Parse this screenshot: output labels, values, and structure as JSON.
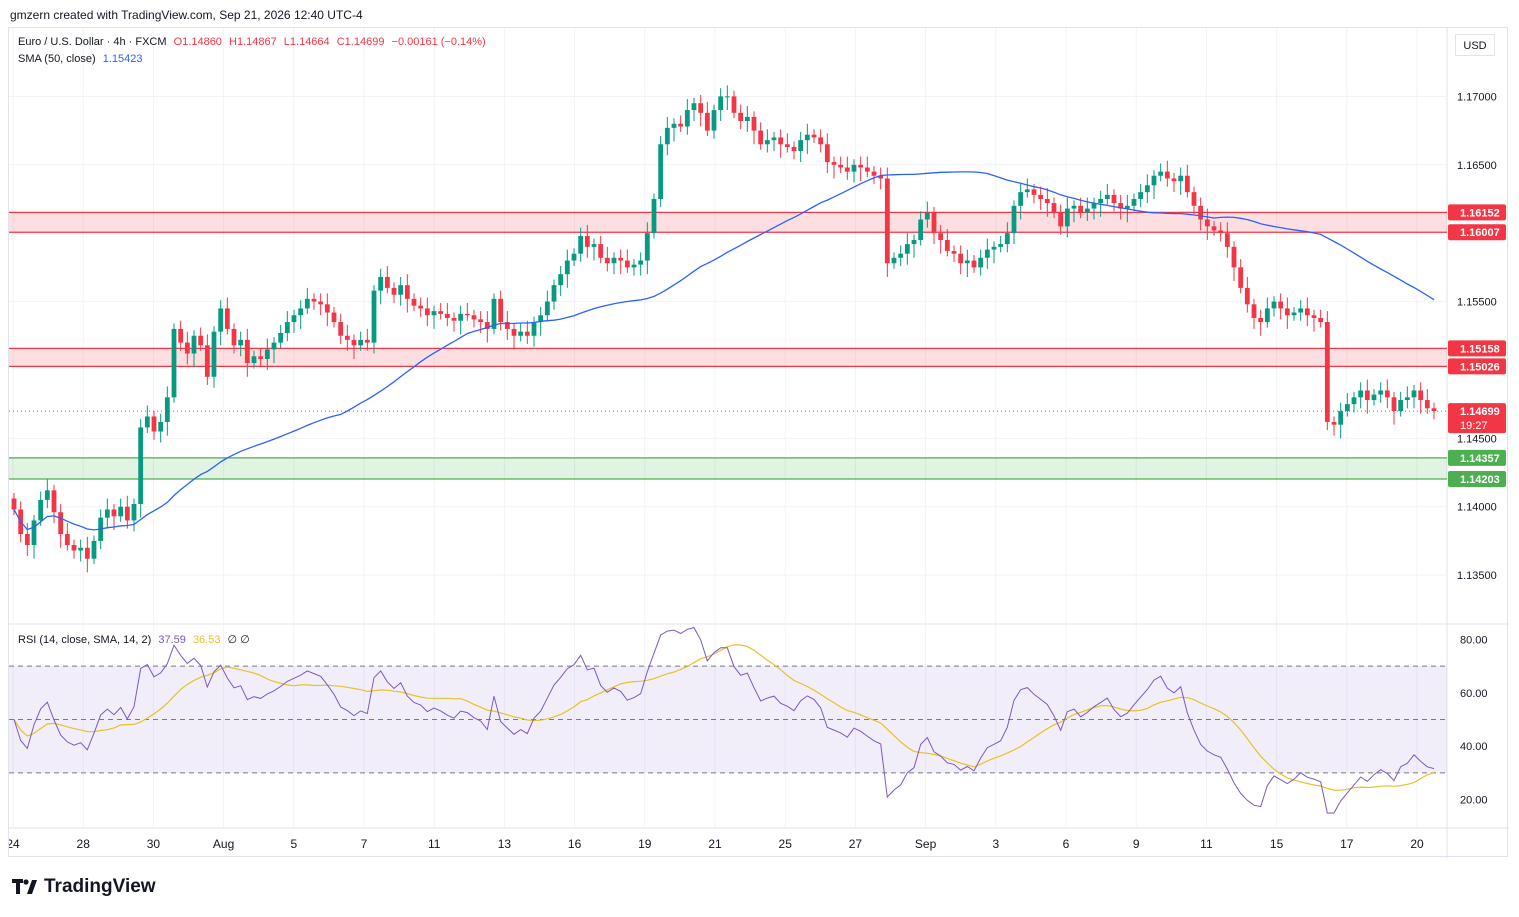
{
  "header": {
    "attribution": "gmzern created with TradingView.com, Sep 21, 2026 12:40 UTC-4"
  },
  "legend": {
    "symbol": "Euro / U.S. Dollar · 4h · FXCM",
    "ohlc_o": "O1.14860",
    "ohlc_h": "H1.14867",
    "ohlc_l": "L1.14664",
    "ohlc_c": "C1.14699",
    "change": "−0.00161 (−0.14%)",
    "sma_label": "SMA (50, close)",
    "sma_value": "1.15423",
    "rsi_label": "RSI (14, close, SMA, 14, 2)",
    "rsi_value": "37.59",
    "rsi_ma_value": "36.53",
    "rsi_extra": "∅ ∅"
  },
  "currency": "USD",
  "footer": {
    "brand": "TradingView"
  },
  "colors": {
    "up": "#089981",
    "down": "#f23645",
    "sma": "#2962ff",
    "rsi": "#7e57c2",
    "rsi_ma": "#e6c229",
    "supply_zone": "#f23645",
    "demand_zone": "#4caf50"
  },
  "chart_data": {
    "type": "candlestick",
    "price_axis": {
      "ticks": [
        "1.17000",
        "1.16500",
        "1.15500",
        "1.14500",
        "1.14000",
        "1.13500"
      ],
      "ylim": [
        1.1315,
        1.175
      ]
    },
    "price_labels": {
      "zone_upper_top": "1.16152",
      "zone_upper_bottom": "1.16007",
      "zone_mid_top": "1.15158",
      "zone_mid_bottom": "1.15026",
      "last_price": "1.14699",
      "countdown": "19:27",
      "zone_low_top": "1.14357",
      "zone_low_bottom": "1.14203"
    },
    "zones": [
      {
        "kind": "resistance",
        "top": 1.16152,
        "bottom": 1.16007
      },
      {
        "kind": "resistance",
        "top": 1.15158,
        "bottom": 1.15026
      },
      {
        "kind": "support",
        "top": 1.14357,
        "bottom": 1.14203
      }
    ],
    "last_price": 1.14699,
    "x_axis": {
      "labels": [
        "24",
        "28",
        "30",
        "Aug",
        "5",
        "7",
        "11",
        "13",
        "16",
        "19",
        "21",
        "25",
        "27",
        "Sep",
        "3",
        "6",
        "9",
        "11",
        "15",
        "17",
        "20"
      ]
    },
    "close_series": [
      1.1398,
      1.138,
      1.1372,
      1.139,
      1.1405,
      1.1412,
      1.1396,
      1.138,
      1.1372,
      1.1368,
      1.137,
      1.1362,
      1.1375,
      1.1392,
      1.1398,
      1.1393,
      1.14,
      1.139,
      1.1402,
      1.1458,
      1.1466,
      1.1455,
      1.1462,
      1.148,
      1.153,
      1.152,
      1.1512,
      1.1525,
      1.1518,
      1.1495,
      1.1528,
      1.1545,
      1.153,
      1.1518,
      1.1522,
      1.1505,
      1.151,
      1.1508,
      1.1515,
      1.152,
      1.1527,
      1.1535,
      1.154,
      1.1545,
      1.1552,
      1.155,
      1.1548,
      1.1542,
      1.1535,
      1.1525,
      1.1522,
      1.1518,
      1.1522,
      1.152,
      1.1558,
      1.1568,
      1.156,
      1.1555,
      1.1562,
      1.1552,
      1.1547,
      1.1545,
      1.154,
      1.1543,
      1.1541,
      1.1538,
      1.1536,
      1.1541,
      1.154,
      1.1537,
      1.1535,
      1.153,
      1.1552,
      1.1535,
      1.153,
      1.1525,
      1.1528,
      1.1525,
      1.1535,
      1.154,
      1.155,
      1.1562,
      1.157,
      1.158,
      1.1585,
      1.1598,
      1.159,
      1.1592,
      1.1582,
      1.1578,
      1.1582,
      1.158,
      1.1575,
      1.1577,
      1.158,
      1.16,
      1.1625,
      1.1665,
      1.1677,
      1.168,
      1.1678,
      1.169,
      1.1695,
      1.1688,
      1.1675,
      1.169,
      1.17,
      1.17,
      1.1688,
      1.1682,
      1.1685,
      1.1675,
      1.1665,
      1.1668,
      1.167,
      1.1665,
      1.1663,
      1.166,
      1.1668,
      1.1672,
      1.167,
      1.1665,
      1.1652,
      1.165,
      1.1648,
      1.1645,
      1.165,
      1.1648,
      1.1645,
      1.1642,
      1.164,
      1.1578,
      1.1582,
      1.1585,
      1.1592,
      1.1595,
      1.161,
      1.1615,
      1.16,
      1.1595,
      1.1587,
      1.1585,
      1.1578,
      1.158,
      1.1575,
      1.1582,
      1.1588,
      1.159,
      1.1592,
      1.16,
      1.162,
      1.163,
      1.1632,
      1.1628,
      1.1625,
      1.1622,
      1.1615,
      1.1605,
      1.1618,
      1.162,
      1.1615,
      1.1618,
      1.1622,
      1.1625,
      1.1628,
      1.1622,
      1.1618,
      1.162,
      1.1625,
      1.163,
      1.1635,
      1.1642,
      1.1645,
      1.164,
      1.1638,
      1.1642,
      1.163,
      1.162,
      1.161,
      1.1605,
      1.1602,
      1.16,
      1.159,
      1.1575,
      1.156,
      1.1548,
      1.1538,
      1.1535,
      1.1545,
      1.155,
      1.1545,
      1.154,
      1.1542,
      1.1545,
      1.154,
      1.1538,
      1.1535,
      1.1462,
      1.146,
      1.147,
      1.1475,
      1.148,
      1.1485,
      1.1478,
      1.1482,
      1.1485,
      1.148,
      1.147,
      1.1478,
      1.148,
      1.1485,
      1.1478,
      1.1472,
      1.147
    ],
    "rsi": {
      "levels": [
        70,
        50,
        30
      ],
      "ylim": [
        15,
        85
      ],
      "ticks": [
        "80.00",
        "60.00",
        "40.00",
        "20.00"
      ]
    }
  }
}
